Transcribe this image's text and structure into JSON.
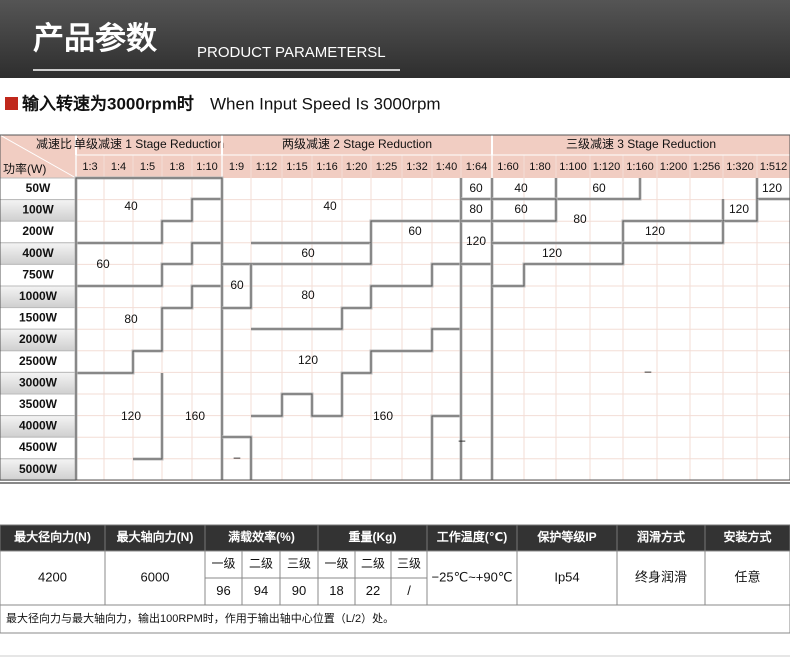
{
  "header": {
    "title": "产品参数",
    "subtitle": "PRODUCT PARAMETERSL"
  },
  "section": {
    "title_cn": "输入转速为3000rpm时",
    "title_en": "When Input Speed Is 3000rpm"
  },
  "grid": {
    "corner_top": "减速比",
    "corner_bottom": "功率(W)",
    "groups": [
      {
        "label": "单级减速 1 Stage Reduction",
        "ratios": [
          "1:3",
          "1:4",
          "1:5",
          "1:8",
          "1:10"
        ]
      },
      {
        "label": "两级减速 2 Stage Reduction",
        "ratios": [
          "1:9",
          "1:12",
          "1:15",
          "1:16",
          "1:20",
          "1:25",
          "1:32",
          "1:40",
          "1:64"
        ]
      },
      {
        "label": "三级减速 3 Stage Reduction",
        "ratios": [
          "1:60",
          "1:80",
          "1:100",
          "1:120",
          "1:160",
          "1:200",
          "1:256",
          "1:320",
          "1:512"
        ]
      }
    ],
    "powers": [
      "50W",
      "100W",
      "200W",
      "400W",
      "750W",
      "1000W",
      "1500W",
      "2000W",
      "2500W",
      "3000W",
      "3500W",
      "4000W",
      "4500W",
      "5000W"
    ],
    "regions": [
      "40",
      "60",
      "80",
      "120",
      "160",
      "40",
      "60",
      "60",
      "60",
      "80",
      "120",
      "160",
      "–",
      "–",
      "60",
      "80",
      "120",
      "40",
      "60",
      "120",
      "60",
      "80",
      "120",
      "120",
      "120",
      "–"
    ]
  },
  "specs": {
    "headers": [
      "最大径向力(N)",
      "最大轴向力(N)",
      "满载效率(%)",
      "重量(Kg)",
      "工作温度(℃)",
      "保护等级IP",
      "润滑方式",
      "安装方式"
    ],
    "efficiency_levels": [
      "一级",
      "二级",
      "三级"
    ],
    "weight_levels": [
      "一级",
      "二级",
      "三级"
    ],
    "radial_force": "4200",
    "axial_force": "6000",
    "efficiency": [
      "96",
      "94",
      "90"
    ],
    "weight": [
      "18",
      "22",
      "/"
    ],
    "temperature": "−25℃~+90℃",
    "protection": "Ip54",
    "lubrication": "终身润滑",
    "installation": "任意",
    "note": "最大径向力与最大轴向力，输出100RPM时，作用于输出轴中心位置（L/2）处。"
  }
}
